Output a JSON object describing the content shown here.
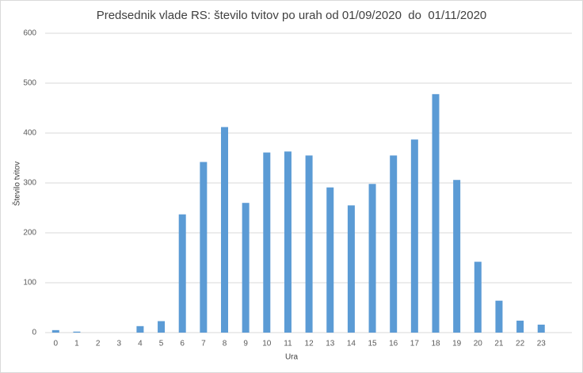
{
  "chart_data": {
    "type": "bar",
    "title": "Predsednik vlade RS: število tvitov po urah od 01/09/2020  do  01/11/2020",
    "x_label": "Ura",
    "y_label": "Število tvitov",
    "categories": [
      "0",
      "1",
      "2",
      "3",
      "4",
      "5",
      "6",
      "7",
      "8",
      "9",
      "10",
      "11",
      "12",
      "13",
      "14",
      "15",
      "16",
      "17",
      "18",
      "19",
      "20",
      "21",
      "22",
      "23"
    ],
    "values": [
      5,
      2,
      0,
      0,
      13,
      23,
      237,
      342,
      412,
      260,
      361,
      363,
      355,
      291,
      255,
      298,
      355,
      387,
      478,
      306,
      142,
      64,
      24,
      16
    ],
    "color": "#5b9bd5",
    "ylim": [
      0,
      600
    ],
    "yticks": [
      0,
      100,
      200,
      300,
      400,
      500,
      600
    ],
    "grid": true
  }
}
